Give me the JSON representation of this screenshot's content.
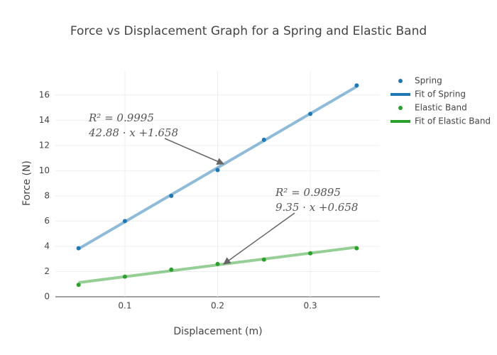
{
  "chart_data": {
    "type": "scatter",
    "title": "Force vs Displacement Graph for a Spring and Elastic Band",
    "x_label": "Displacement (m)",
    "y_label": "Force (N)",
    "series": [
      {
        "name": "Spring",
        "mode": "markers",
        "color": "#1f77b4",
        "x": [
          0.05,
          0.1,
          0.15,
          0.2,
          0.25,
          0.3,
          0.35
        ],
        "values": [
          3.85,
          6.0,
          8.0,
          10.05,
          12.45,
          14.5,
          16.75
        ]
      },
      {
        "name": "Fit of Spring",
        "mode": "lines",
        "color": "#1f77b4",
        "x": [
          0.05,
          0.35
        ],
        "values": [
          3.802,
          16.666
        ]
      },
      {
        "name": "Elastic Band",
        "mode": "markers",
        "color": "#2ca02c",
        "x": [
          0.05,
          0.1,
          0.15,
          0.2,
          0.25,
          0.3,
          0.35
        ],
        "values": [
          0.95,
          1.6,
          2.15,
          2.6,
          2.95,
          3.45,
          3.85
        ]
      },
      {
        "name": "Fit of Elastic Band",
        "mode": "lines",
        "color": "#2ca02c",
        "x": [
          0.05,
          0.35
        ],
        "values": [
          1.1255,
          3.9305
        ]
      }
    ],
    "annotations": [
      {
        "lines": [
          "R² = 0.9995",
          "42.88 · x +1.658"
        ]
      },
      {
        "lines": [
          "R² = 0.9895",
          "9.35 · x +0.658"
        ]
      }
    ],
    "xlim": [
      0.025,
      0.375
    ],
    "xticks": [
      0.1,
      0.2,
      0.3
    ],
    "ylim": [
      0,
      17.9
    ],
    "yticks": [
      0,
      2,
      4,
      6,
      8,
      10,
      12,
      14,
      16
    ],
    "grid": true,
    "legend_position": "right"
  }
}
